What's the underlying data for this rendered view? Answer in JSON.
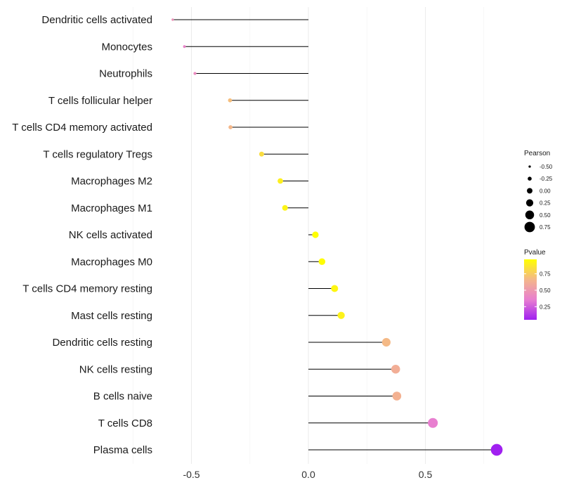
{
  "chart_data": {
    "type": "lollipop",
    "title": "",
    "xlabel": "",
    "ylabel": "",
    "xlim": [
      -0.74,
      0.82
    ],
    "x_ticks": [
      -0.5,
      0.0,
      0.5
    ],
    "x_tick_labels": [
      "-0.5",
      "0.0",
      "0.5"
    ],
    "grid": true,
    "categories": [
      "Dendritic cells activated",
      "Monocytes",
      "Neutrophils",
      "T cells follicular helper",
      "T cells CD4 memory activated",
      "T cells regulatory  Tregs",
      "Macrophages M2",
      "Macrophages M1",
      "NK cells activated",
      "Macrophages M0",
      "T cells CD4 memory resting",
      "Mast cells resting",
      "Dendritic cells resting",
      "NK cells resting",
      "B cells naive",
      "T cells CD8",
      "Plasma cells"
    ],
    "values": [
      -0.58,
      -0.53,
      -0.485,
      -0.335,
      -0.333,
      -0.2,
      -0.12,
      -0.1,
      0.03,
      0.058,
      0.112,
      0.14,
      0.333,
      0.373,
      0.378,
      0.532,
      0.805
    ],
    "pvalues": [
      0.45,
      0.38,
      0.42,
      0.68,
      0.65,
      0.82,
      0.9,
      0.92,
      0.97,
      0.96,
      0.93,
      0.91,
      0.66,
      0.6,
      0.62,
      0.35,
      0.05
    ],
    "legend_size": {
      "title": "Pearson",
      "values": [
        -0.5,
        -0.25,
        0.0,
        0.25,
        0.5,
        0.75
      ],
      "labels": [
        "-0.50",
        "-0.25",
        "0.00",
        "0.25",
        "0.50",
        "0.75"
      ]
    },
    "legend_color": {
      "title": "Pvalue",
      "range": [
        0.05,
        0.97
      ],
      "ticks": [
        0.75,
        0.5,
        0.25
      ],
      "labels": [
        "0.75",
        "0.50",
        "0.25"
      ],
      "colors": [
        "#a020f0",
        "#e87fd0",
        "#f4b78a",
        "#ffff00"
      ]
    },
    "legend_position": "right",
    "stem_color": "#000000"
  }
}
